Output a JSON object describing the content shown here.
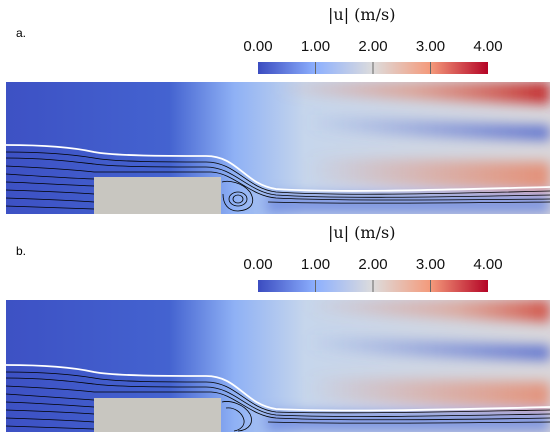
{
  "panels": [
    {
      "label": "a.",
      "colorbar": {
        "title": "|u| (m/s)",
        "ticks": [
          "0.00",
          "1.00",
          "2.00",
          "3.00",
          "4.00"
        ],
        "range": [
          0,
          4
        ],
        "colors": [
          "#3b4cc0",
          "#8db0fe",
          "#dddcdc",
          "#f49a7b",
          "#b40426"
        ]
      }
    },
    {
      "label": "b.",
      "colorbar": {
        "title": "|u| (m/s)",
        "ticks": [
          "0.00",
          "1.00",
          "2.00",
          "3.00",
          "4.00"
        ],
        "range": [
          0,
          4
        ],
        "colors": [
          "#3b4cc0",
          "#8db0fe",
          "#dddcdc",
          "#f49a7b",
          "#b40426"
        ]
      }
    }
  ],
  "obstacle_color": "#c8c6c0"
}
